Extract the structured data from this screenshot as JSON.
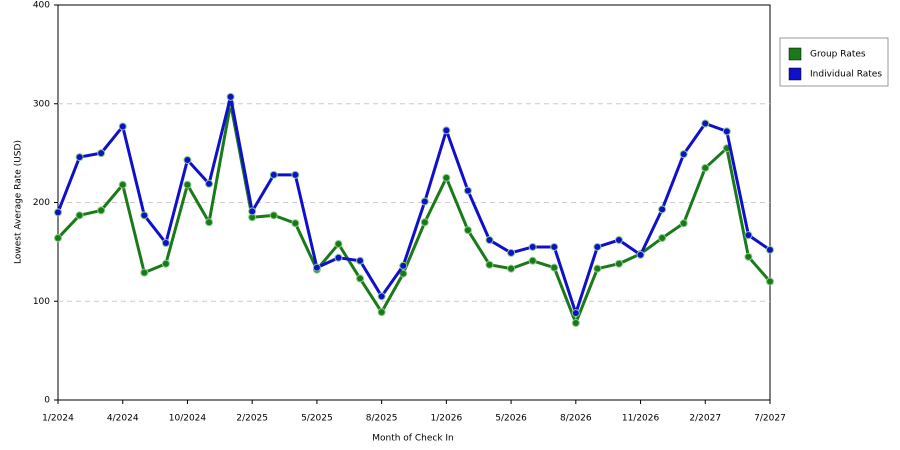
{
  "chart_data": {
    "type": "line",
    "x_label": "Month of Check In",
    "y_label": "Lowest Average Rate (USD)",
    "categories": [
      "1/2024",
      null,
      null,
      "4/2024",
      null,
      null,
      "10/2024",
      null,
      null,
      "2/2025",
      null,
      null,
      "5/2025",
      null,
      null,
      "8/2025",
      null,
      null,
      "1/2026",
      null,
      null,
      "5/2026",
      null,
      null,
      "8/2026",
      null,
      null,
      "11/2026",
      null,
      null,
      "2/2027",
      null,
      null,
      "7/2027"
    ],
    "series": [
      {
        "name": "Group Rates",
        "color": "#1a7a1a",
        "values": [
          164,
          187,
          192,
          218,
          129,
          138,
          218,
          180,
          300,
          185,
          187,
          179,
          132,
          158,
          123,
          89,
          128,
          180,
          225,
          172,
          137,
          133,
          141,
          134,
          78,
          133,
          138,
          148,
          164,
          179,
          235,
          255,
          145,
          120
        ]
      },
      {
        "name": "Individual Rates",
        "color": "#1010cc",
        "values": [
          190,
          246,
          250,
          277,
          187,
          159,
          243,
          219,
          307,
          191,
          228,
          228,
          134,
          144,
          141,
          105,
          136,
          201,
          273,
          212,
          162,
          149,
          155,
          155,
          88,
          155,
          162,
          147,
          193,
          249,
          280,
          272,
          167,
          152
        ]
      }
    ],
    "ylim": [
      0,
      400
    ],
    "yticks": [
      0,
      100,
      200,
      300,
      400
    ],
    "grid": true,
    "legend": "right"
  }
}
